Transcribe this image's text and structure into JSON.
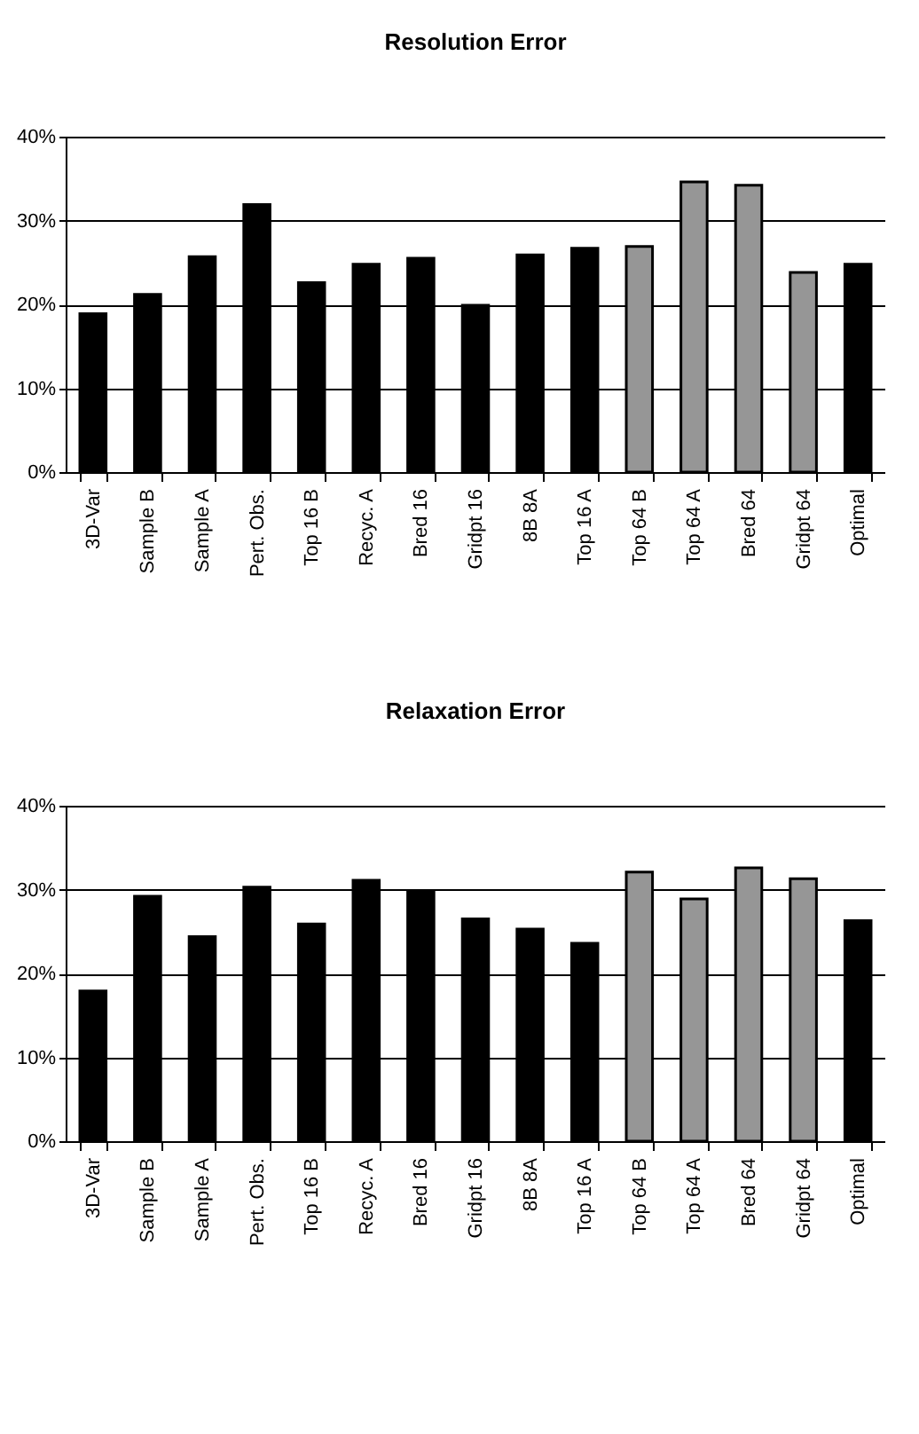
{
  "chart_data": [
    {
      "type": "bar",
      "title": "Resolution Error",
      "categories": [
        "3D-Var",
        "Sample B",
        "Sample A",
        "Pert. Obs.",
        "Top 16 B",
        "Recyc. A",
        "Bred 16",
        "Gridpt 16",
        "8B 8A",
        "Top 16 A",
        "Top 64 B",
        "Top 64 A",
        "Bred 64",
        "Gridpt 64",
        "Optimal"
      ],
      "values": [
        18.9,
        21.2,
        25.7,
        31.9,
        22.6,
        24.8,
        25.5,
        19.9,
        25.9,
        26.7,
        26.9,
        34.6,
        34.2,
        23.8,
        24.8
      ],
      "colors": [
        "#000000",
        "#000000",
        "#000000",
        "#000000",
        "#000000",
        "#000000",
        "#000000",
        "#000000",
        "#000000",
        "#000000",
        "#969696",
        "#969696",
        "#969696",
        "#969696",
        "#000000"
      ],
      "ylim": [
        0,
        40
      ],
      "yticks": [
        {
          "value": 0,
          "label": "0%"
        },
        {
          "value": 10,
          "label": "10%"
        },
        {
          "value": 20,
          "label": "20%"
        },
        {
          "value": 30,
          "label": "30%"
        },
        {
          "value": 40,
          "label": "40%"
        }
      ],
      "grid": "y"
    },
    {
      "type": "bar",
      "title": "Relaxation Error",
      "categories": [
        "3D-Var",
        "Sample B",
        "Sample A",
        "Pert. Obs.",
        "Top 16 B",
        "Recyc. A",
        "Bred 16",
        "Gridpt 16",
        "8B 8A",
        "Top 16 A",
        "Top 64 B",
        "Top 64 A",
        "Bred 64",
        "Gridpt 64",
        "Optimal"
      ],
      "values": [
        17.9,
        29.2,
        24.4,
        30.3,
        25.9,
        31.1,
        29.9,
        26.5,
        25.3,
        23.6,
        32.1,
        28.9,
        32.6,
        31.3,
        26.3
      ],
      "colors": [
        "#000000",
        "#000000",
        "#000000",
        "#000000",
        "#000000",
        "#000000",
        "#000000",
        "#000000",
        "#000000",
        "#000000",
        "#969696",
        "#969696",
        "#969696",
        "#969696",
        "#000000"
      ],
      "ylim": [
        0,
        40
      ],
      "yticks": [
        {
          "value": 0,
          "label": "0%"
        },
        {
          "value": 10,
          "label": "10%"
        },
        {
          "value": 20,
          "label": "20%"
        },
        {
          "value": 30,
          "label": "30%"
        },
        {
          "value": 40,
          "label": "40%"
        }
      ],
      "grid": "y"
    }
  ]
}
